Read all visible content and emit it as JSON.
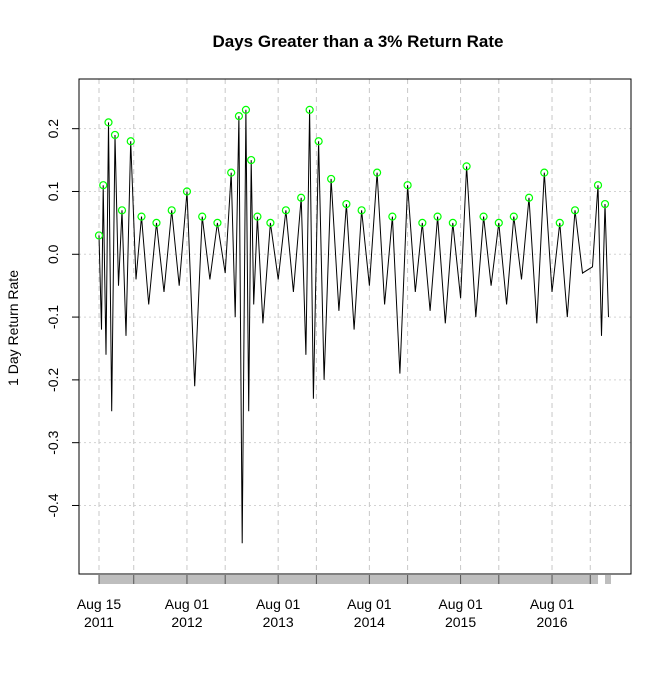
{
  "chart_data": {
    "type": "line",
    "title": "Days Greater than a 3% Return Rate",
    "xlabel": "",
    "ylabel": "1 Day Return Rate",
    "threshold": 0.03,
    "xlim": [
      "2011-08-15",
      "2017-03-25"
    ],
    "ylim": [
      -0.49,
      0.26
    ],
    "x_ticks": [
      {
        "date": "2011-08-15",
        "label": [
          "Aug 15",
          "2011"
        ]
      },
      {
        "date": "2012-08-01",
        "label": [
          "Aug 01",
          "2012"
        ]
      },
      {
        "date": "2013-08-01",
        "label": [
          "Aug 01",
          "2013"
        ]
      },
      {
        "date": "2014-08-01",
        "label": [
          "Aug 01",
          "2014"
        ]
      },
      {
        "date": "2015-08-01",
        "label": [
          "Aug 01",
          "2015"
        ]
      },
      {
        "date": "2016-08-01",
        "label": [
          "Aug 01",
          "2016"
        ]
      }
    ],
    "y_ticks": [
      -0.4,
      -0.3,
      -0.2,
      -0.1,
      0.0,
      0.1,
      0.2
    ],
    "y_tick_labels": [
      "-0.4",
      "-0.3",
      "-0.2",
      "-0.1",
      "0.0",
      "0.1",
      "0.2"
    ],
    "minor_gridline_dates": [
      "2012-01-01",
      "2013-01-01",
      "2014-01-01",
      "2015-01-01",
      "2016-01-01",
      "2017-01-01"
    ],
    "grid": true,
    "series": [
      {
        "kind": "line",
        "color": "#000000",
        "x": [
          "2011-08-15",
          "2011-08-25",
          "2011-09-01",
          "2011-09-12",
          "2011-09-22",
          "2011-10-05",
          "2011-10-18",
          "2011-11-01",
          "2011-11-15",
          "2011-12-01",
          "2011-12-20",
          "2012-01-10",
          "2012-02-01",
          "2012-03-01",
          "2012-04-01",
          "2012-05-01",
          "2012-06-01",
          "2012-07-01",
          "2012-08-01",
          "2012-09-01",
          "2012-10-01",
          "2012-11-01",
          "2012-12-01",
          "2013-01-01",
          "2013-01-25",
          "2013-02-10",
          "2013-02-25",
          "2013-03-10",
          "2013-03-25",
          "2013-04-05",
          "2013-04-15",
          "2013-04-25",
          "2013-05-10",
          "2013-06-01",
          "2013-07-01",
          "2013-08-01",
          "2013-09-01",
          "2013-10-01",
          "2013-11-01",
          "2013-11-20",
          "2013-12-05",
          "2013-12-20",
          "2014-01-10",
          "2014-02-01",
          "2014-03-01",
          "2014-04-01",
          "2014-05-01",
          "2014-06-01",
          "2014-07-01",
          "2014-08-01",
          "2014-09-01",
          "2014-10-01",
          "2014-11-01",
          "2014-12-01",
          "2015-01-01",
          "2015-02-01",
          "2015-03-01",
          "2015-04-01",
          "2015-05-01",
          "2015-06-01",
          "2015-07-01",
          "2015-08-01",
          "2015-08-25",
          "2015-10-01",
          "2015-11-01",
          "2015-12-01",
          "2016-01-01",
          "2016-02-01",
          "2016-03-01",
          "2016-04-01",
          "2016-05-01",
          "2016-06-01",
          "2016-07-01",
          "2016-08-01",
          "2016-09-01",
          "2016-10-01",
          "2016-11-01",
          "2016-12-01",
          "2017-01-10",
          "2017-02-01",
          "2017-02-15",
          "2017-03-01",
          "2017-03-15"
        ],
        "y": [
          0.03,
          -0.12,
          0.11,
          -0.16,
          0.21,
          -0.25,
          0.19,
          -0.05,
          0.07,
          -0.13,
          0.18,
          -0.04,
          0.06,
          -0.08,
          0.05,
          -0.06,
          0.07,
          -0.05,
          0.1,
          -0.21,
          0.06,
          -0.04,
          0.05,
          -0.03,
          0.13,
          -0.1,
          0.22,
          -0.46,
          0.23,
          -0.25,
          0.15,
          -0.08,
          0.06,
          -0.11,
          0.05,
          -0.04,
          0.07,
          -0.06,
          0.09,
          -0.16,
          0.23,
          -0.23,
          0.18,
          -0.2,
          0.12,
          -0.09,
          0.08,
          -0.12,
          0.07,
          -0.05,
          0.13,
          -0.08,
          0.06,
          -0.19,
          0.11,
          -0.06,
          0.05,
          -0.09,
          0.06,
          -0.11,
          0.05,
          -0.07,
          0.14,
          -0.1,
          0.06,
          -0.05,
          0.05,
          -0.08,
          0.06,
          -0.04,
          0.09,
          -0.11,
          0.13,
          -0.06,
          0.05,
          -0.1,
          0.07,
          -0.03,
          -0.02,
          0.11,
          -0.13,
          0.08,
          -0.1
        ]
      },
      {
        "kind": "points",
        "color": "#00ff00",
        "marker": "open-circle",
        "x": [
          "2011-08-15",
          "2011-09-01",
          "2011-09-22",
          "2011-10-18",
          "2011-11-15",
          "2011-12-20",
          "2012-02-01",
          "2012-04-01",
          "2012-06-01",
          "2012-08-01",
          "2012-10-01",
          "2012-12-01",
          "2013-01-25",
          "2013-02-25",
          "2013-03-25",
          "2013-04-15",
          "2013-05-10",
          "2013-07-01",
          "2013-09-01",
          "2013-11-01",
          "2013-12-05",
          "2014-01-10",
          "2014-03-01",
          "2014-05-01",
          "2014-07-01",
          "2014-09-01",
          "2014-11-01",
          "2015-01-01",
          "2015-03-01",
          "2015-05-01",
          "2015-07-01",
          "2015-08-25",
          "2015-11-01",
          "2016-01-01",
          "2016-03-01",
          "2016-05-01",
          "2016-07-01",
          "2016-09-01",
          "2016-11-01",
          "2017-02-01",
          "2017-03-01"
        ],
        "y": [
          0.03,
          0.11,
          0.21,
          0.19,
          0.07,
          0.18,
          0.06,
          0.05,
          0.07,
          0.1,
          0.06,
          0.05,
          0.13,
          0.22,
          0.23,
          0.15,
          0.06,
          0.05,
          0.07,
          0.09,
          0.23,
          0.18,
          0.12,
          0.08,
          0.07,
          0.13,
          0.06,
          0.11,
          0.05,
          0.06,
          0.05,
          0.14,
          0.06,
          0.05,
          0.06,
          0.09,
          0.13,
          0.05,
          0.07,
          0.11,
          0.08
        ]
      }
    ],
    "bottom_strip_color": "#bebebe"
  }
}
